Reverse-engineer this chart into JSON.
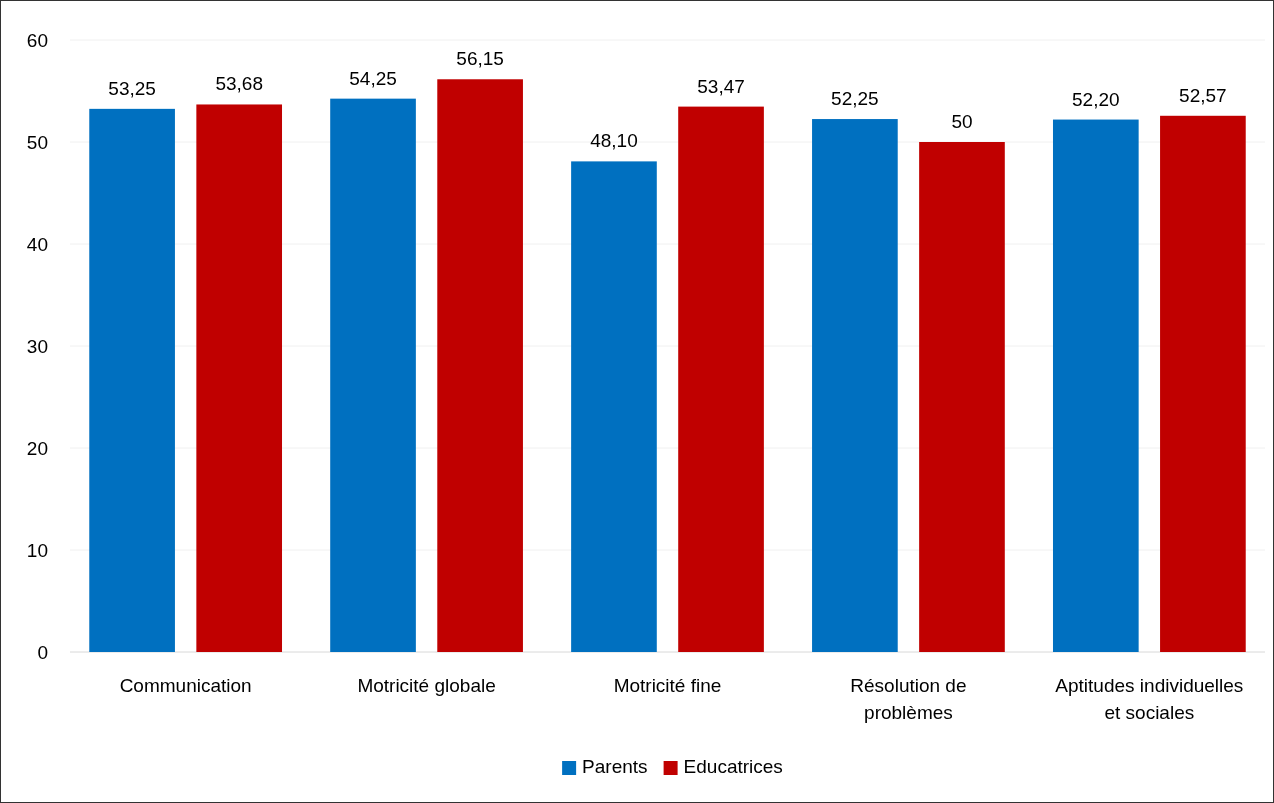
{
  "chart_data": {
    "type": "bar",
    "categories": [
      "Communication",
      "Motricité globale",
      "Motricité fine",
      "Résolution de problèmes",
      "Aptitudes individuelles et sociales"
    ],
    "series": [
      {
        "name": "Parents",
        "color": "#0070c0",
        "values": [
          53.25,
          54.25,
          48.1,
          52.25,
          52.2
        ],
        "value_labels": [
          "53,25",
          "54,25",
          "48,10",
          "52,25",
          "52,20"
        ]
      },
      {
        "name": "Educatrices",
        "color": "#c00000",
        "values": [
          53.68,
          56.15,
          53.47,
          50,
          52.57
        ],
        "value_labels": [
          "53,68",
          "56,15",
          "53,47",
          "50",
          "52,57"
        ]
      }
    ],
    "ylim": [
      0,
      60
    ],
    "yticks": [
      0,
      10,
      20,
      30,
      40,
      50,
      60
    ],
    "grid": "y",
    "legend": "bottom"
  }
}
